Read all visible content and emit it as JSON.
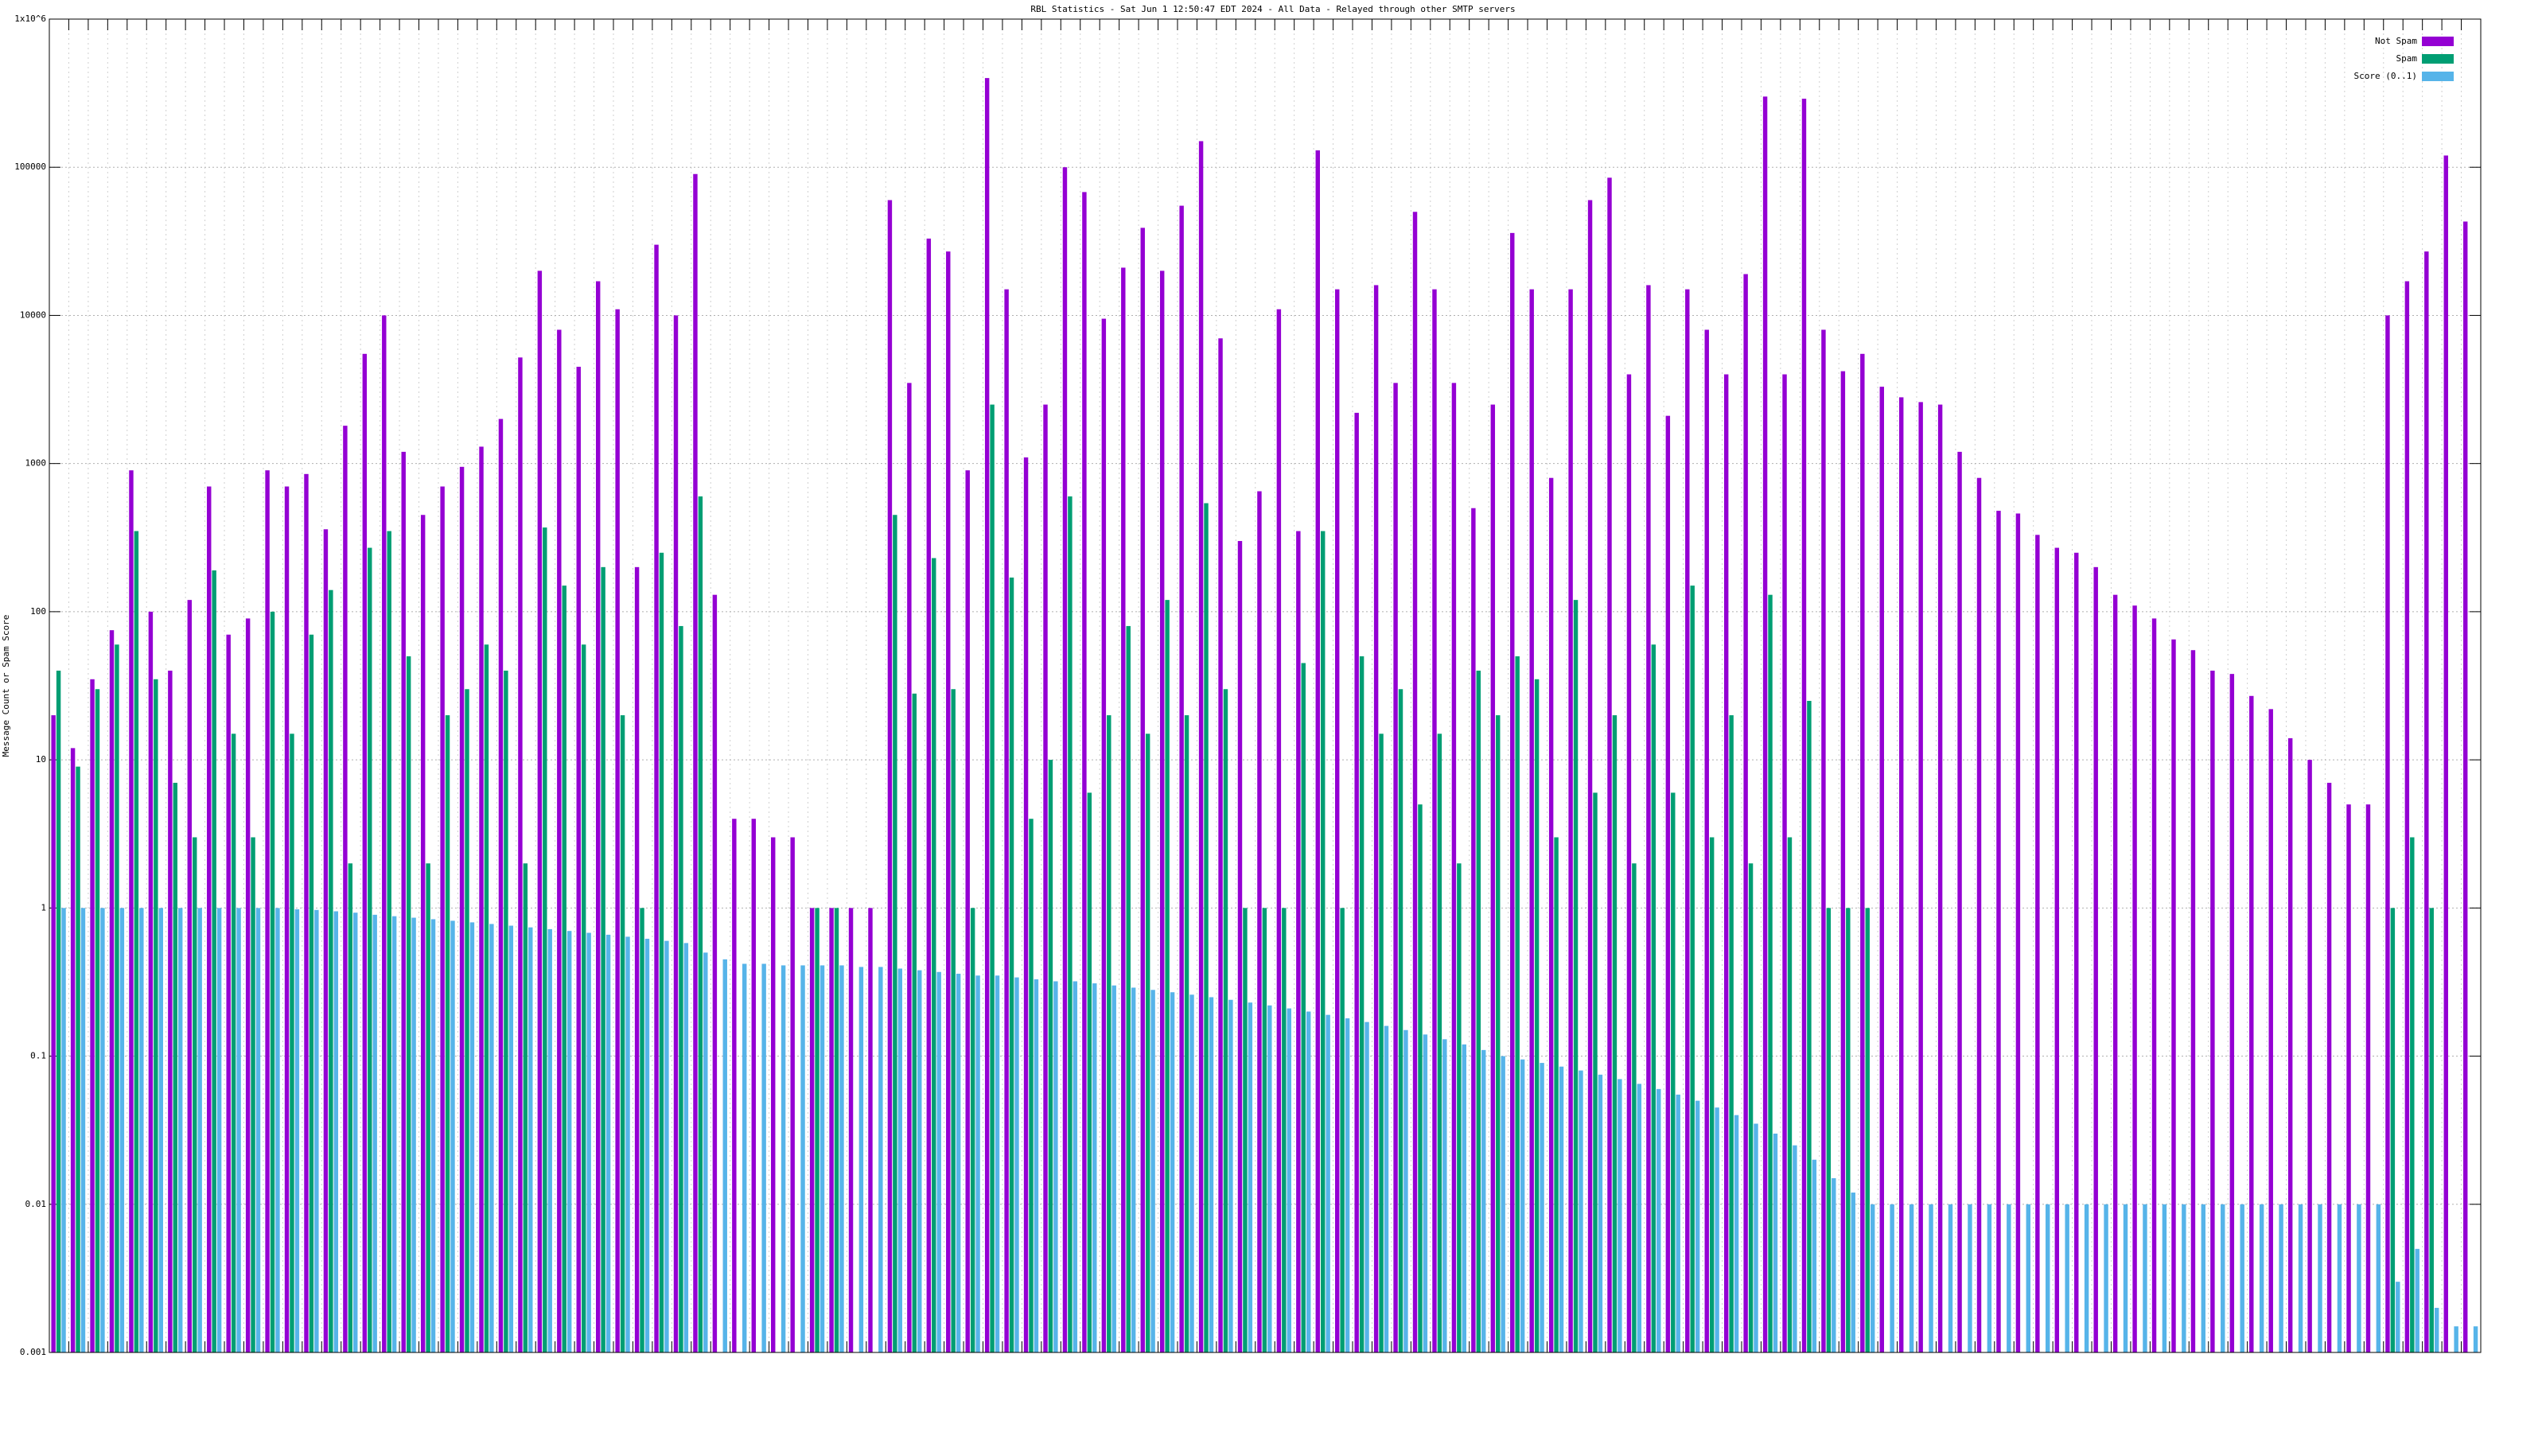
{
  "chart_data": {
    "type": "bar",
    "title": "RBL Statistics - Sat Jun  1 12:50:47 EDT 2024 - All Data - Relayed through other SMTP servers",
    "ylabel": "Message Count or Spam Score",
    "log_scale": true,
    "grid": true,
    "legend": "top-right",
    "ylim": [
      0.001,
      1000000
    ],
    "yticks": [
      0.001,
      0.01,
      0.1,
      1,
      10,
      100,
      1000,
      10000,
      100000,
      {
        "value": 1000000,
        "label": "1x10^6"
      }
    ],
    "categories": [
      null,
      null,
      null,
      null,
      null,
      null,
      null,
      null,
      null,
      null,
      null,
      null,
      null,
      null,
      null,
      null,
      null,
      null,
      null,
      null,
      null,
      null,
      null,
      null,
      null,
      null,
      null,
      null,
      null,
      null,
      null,
      null,
      null,
      null,
      null,
      null,
      null,
      null,
      null,
      null,
      null,
      null,
      null,
      null,
      null,
      null,
      null,
      null,
      null,
      null,
      null,
      null,
      null,
      null,
      null,
      null,
      null,
      null,
      null,
      null,
      null,
      null,
      null,
      null,
      null,
      null,
      null,
      null,
      null,
      null,
      null,
      null,
      null,
      null,
      null,
      null,
      null,
      null,
      null,
      null,
      null,
      null,
      null,
      null,
      null,
      null,
      null,
      null,
      null,
      null,
      null,
      null,
      null,
      null,
      null,
      null,
      null,
      null,
      null,
      null,
      null,
      null,
      null,
      null,
      null,
      null,
      null,
      null,
      null,
      null,
      null,
      null,
      null,
      null,
      null,
      null,
      null,
      null,
      null,
      null,
      null,
      null,
      null,
      null,
      null
    ],
    "series": [
      {
        "name": "Not Spam",
        "color": "#9400d3",
        "values": [
          20,
          12,
          35,
          75,
          900,
          100,
          40,
          120,
          700,
          70,
          90,
          900,
          700,
          850,
          360,
          1800,
          5500,
          10000,
          1200,
          450,
          700,
          950,
          1300,
          2000,
          5200,
          20000,
          8000,
          4500,
          17000,
          11000,
          200,
          30000,
          10000,
          90000,
          130,
          4,
          4,
          3,
          3,
          1,
          1,
          1,
          1,
          60000,
          3500,
          33000,
          27000,
          900,
          400000,
          15000,
          1100,
          2500,
          100000,
          68000,
          9500,
          21000,
          39000,
          20000,
          55000,
          150000,
          7000,
          300,
          650,
          11000,
          350,
          130000,
          15000,
          2200,
          16000,
          3500,
          50000,
          15000,
          3500,
          500,
          2500,
          36000,
          15000,
          800,
          15000,
          60000,
          85000,
          4000,
          16000,
          2100,
          15000,
          8000,
          4000,
          19000,
          300000,
          4000,
          290000,
          8000,
          4200,
          5500,
          3300,
          2800,
          2600,
          2500,
          1200,
          800,
          480,
          460,
          330,
          270,
          250,
          200,
          130,
          110,
          90,
          65,
          55,
          40,
          38,
          27,
          22,
          14,
          10,
          7,
          5,
          5,
          10000,
          17000,
          27000,
          120000,
          43000
        ]
      },
      {
        "name": "Spam",
        "color": "#009e73",
        "values": [
          40,
          9,
          30,
          60,
          350,
          35,
          7,
          3,
          190,
          15,
          3,
          100,
          15,
          70,
          140,
          2,
          270,
          350,
          50,
          2,
          20,
          30,
          60,
          40,
          2,
          370,
          150,
          60,
          200,
          20,
          1,
          250,
          80,
          600,
          null,
          null,
          null,
          null,
          null,
          1,
          1,
          null,
          null,
          450,
          28,
          230,
          30,
          1,
          2500,
          170,
          4,
          10,
          600,
          6,
          20,
          80,
          15,
          120,
          20,
          540,
          30,
          1,
          1,
          1,
          45,
          350,
          1,
          50,
          15,
          30,
          5,
          15,
          2,
          40,
          20,
          50,
          35,
          3,
          120,
          6,
          20,
          2,
          60,
          6,
          150,
          3,
          20,
          2,
          130,
          3,
          25,
          1,
          1,
          1,
          null,
          null,
          null,
          null,
          null,
          null,
          null,
          null,
          null,
          null,
          null,
          null,
          null,
          null,
          null,
          null,
          null,
          null,
          null,
          null,
          null,
          null,
          null,
          null,
          null,
          null,
          1,
          3,
          1,
          null,
          null
        ]
      },
      {
        "name": "Score (0..1)",
        "color": "#56b4e9",
        "values": [
          1,
          1,
          1,
          1,
          1,
          1,
          1,
          1,
          1,
          1,
          1,
          1,
          0.98,
          0.97,
          0.95,
          0.93,
          0.9,
          0.88,
          0.86,
          0.84,
          0.82,
          0.8,
          0.78,
          0.76,
          0.74,
          0.72,
          0.7,
          0.68,
          0.66,
          0.64,
          0.62,
          0.6,
          0.58,
          0.5,
          0.45,
          0.42,
          0.42,
          0.41,
          0.41,
          0.41,
          0.41,
          0.4,
          0.4,
          0.39,
          0.38,
          0.37,
          0.36,
          0.35,
          0.35,
          0.34,
          0.33,
          0.32,
          0.32,
          0.31,
          0.3,
          0.29,
          0.28,
          0.27,
          0.26,
          0.25,
          0.24,
          0.23,
          0.22,
          0.21,
          0.2,
          0.19,
          0.18,
          0.17,
          0.16,
          0.15,
          0.14,
          0.13,
          0.12,
          0.11,
          0.1,
          0.095,
          0.09,
          0.085,
          0.08,
          0.075,
          0.07,
          0.065,
          0.06,
          0.055,
          0.05,
          0.045,
          0.04,
          0.035,
          0.03,
          0.025,
          0.02,
          0.015,
          0.012,
          0.01,
          0.01,
          0.01,
          0.01,
          0.01,
          0.01,
          0.01,
          0.01,
          0.01,
          0.01,
          0.01,
          0.01,
          0.01,
          0.01,
          0.01,
          0.01,
          0.01,
          0.01,
          0.01,
          0.01,
          0.01,
          0.01,
          0.01,
          0.01,
          0.01,
          0.01,
          0.01,
          0.003,
          0.005,
          0.002,
          0.0015,
          0.0015
        ]
      }
    ]
  }
}
